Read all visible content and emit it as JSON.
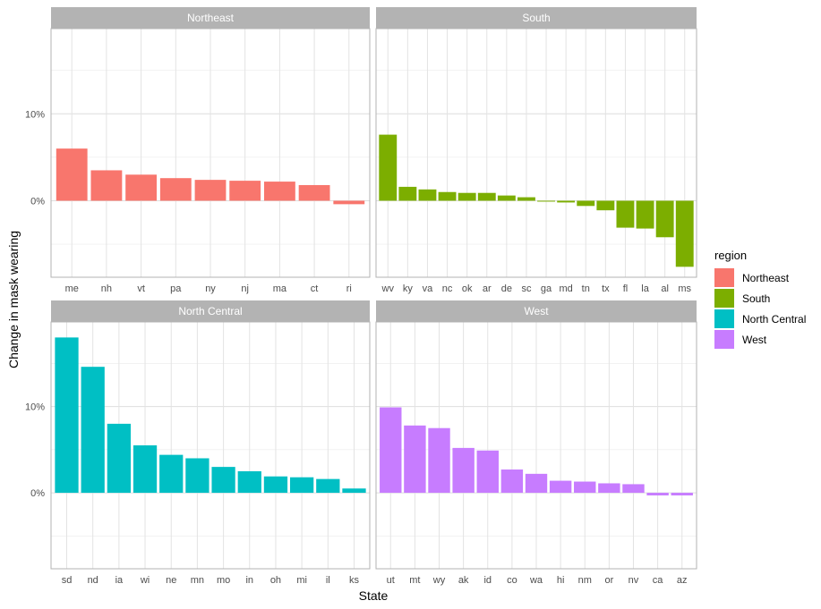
{
  "chart_data": {
    "type": "bar",
    "xlabel": "State",
    "ylabel": "Change in mask wearing",
    "y_unit": "percent",
    "ylim": [
      -0.088,
      0.198
    ],
    "yticks": [
      0,
      0.1
    ],
    "ytick_labels": [
      "0%",
      "10%"
    ],
    "legend": {
      "title": "region",
      "position": "right",
      "items": [
        {
          "label": "Northeast",
          "color": "#F8766D"
        },
        {
          "label": "South",
          "color": "#7CAE00"
        },
        {
          "label": "North Central",
          "color": "#00BFC4"
        },
        {
          "label": "West",
          "color": "#C77CFF"
        }
      ]
    },
    "panels": [
      {
        "name": "Northeast",
        "color": "#F8766D",
        "categories": [
          "me",
          "nh",
          "vt",
          "pa",
          "ny",
          "nj",
          "ma",
          "ct",
          "ri"
        ],
        "values": [
          0.06,
          0.035,
          0.03,
          0.026,
          0.024,
          0.023,
          0.022,
          0.018,
          -0.004
        ]
      },
      {
        "name": "South",
        "color": "#7CAE00",
        "categories": [
          "wv",
          "ky",
          "va",
          "nc",
          "ok",
          "ar",
          "de",
          "sc",
          "ga",
          "md",
          "tn",
          "tx",
          "fl",
          "la",
          "al",
          "ms"
        ],
        "values": [
          0.076,
          0.016,
          0.013,
          0.01,
          0.009,
          0.009,
          0.006,
          0.004,
          -0.001,
          -0.002,
          -0.006,
          -0.011,
          -0.031,
          -0.032,
          -0.042,
          -0.076
        ]
      },
      {
        "name": "North Central",
        "color": "#00BFC4",
        "categories": [
          "sd",
          "nd",
          "ia",
          "wi",
          "ne",
          "mn",
          "mo",
          "in",
          "oh",
          "mi",
          "il",
          "ks"
        ],
        "values": [
          0.18,
          0.146,
          0.08,
          0.055,
          0.044,
          0.04,
          0.03,
          0.025,
          0.019,
          0.018,
          0.016,
          0.005
        ]
      },
      {
        "name": "West",
        "color": "#C77CFF",
        "categories": [
          "ut",
          "mt",
          "wy",
          "ak",
          "id",
          "co",
          "wa",
          "hi",
          "nm",
          "or",
          "nv",
          "ca",
          "az"
        ],
        "values": [
          0.099,
          0.078,
          0.075,
          0.052,
          0.049,
          0.027,
          0.022,
          0.014,
          0.013,
          0.011,
          0.01,
          -0.003,
          -0.003
        ]
      }
    ]
  }
}
